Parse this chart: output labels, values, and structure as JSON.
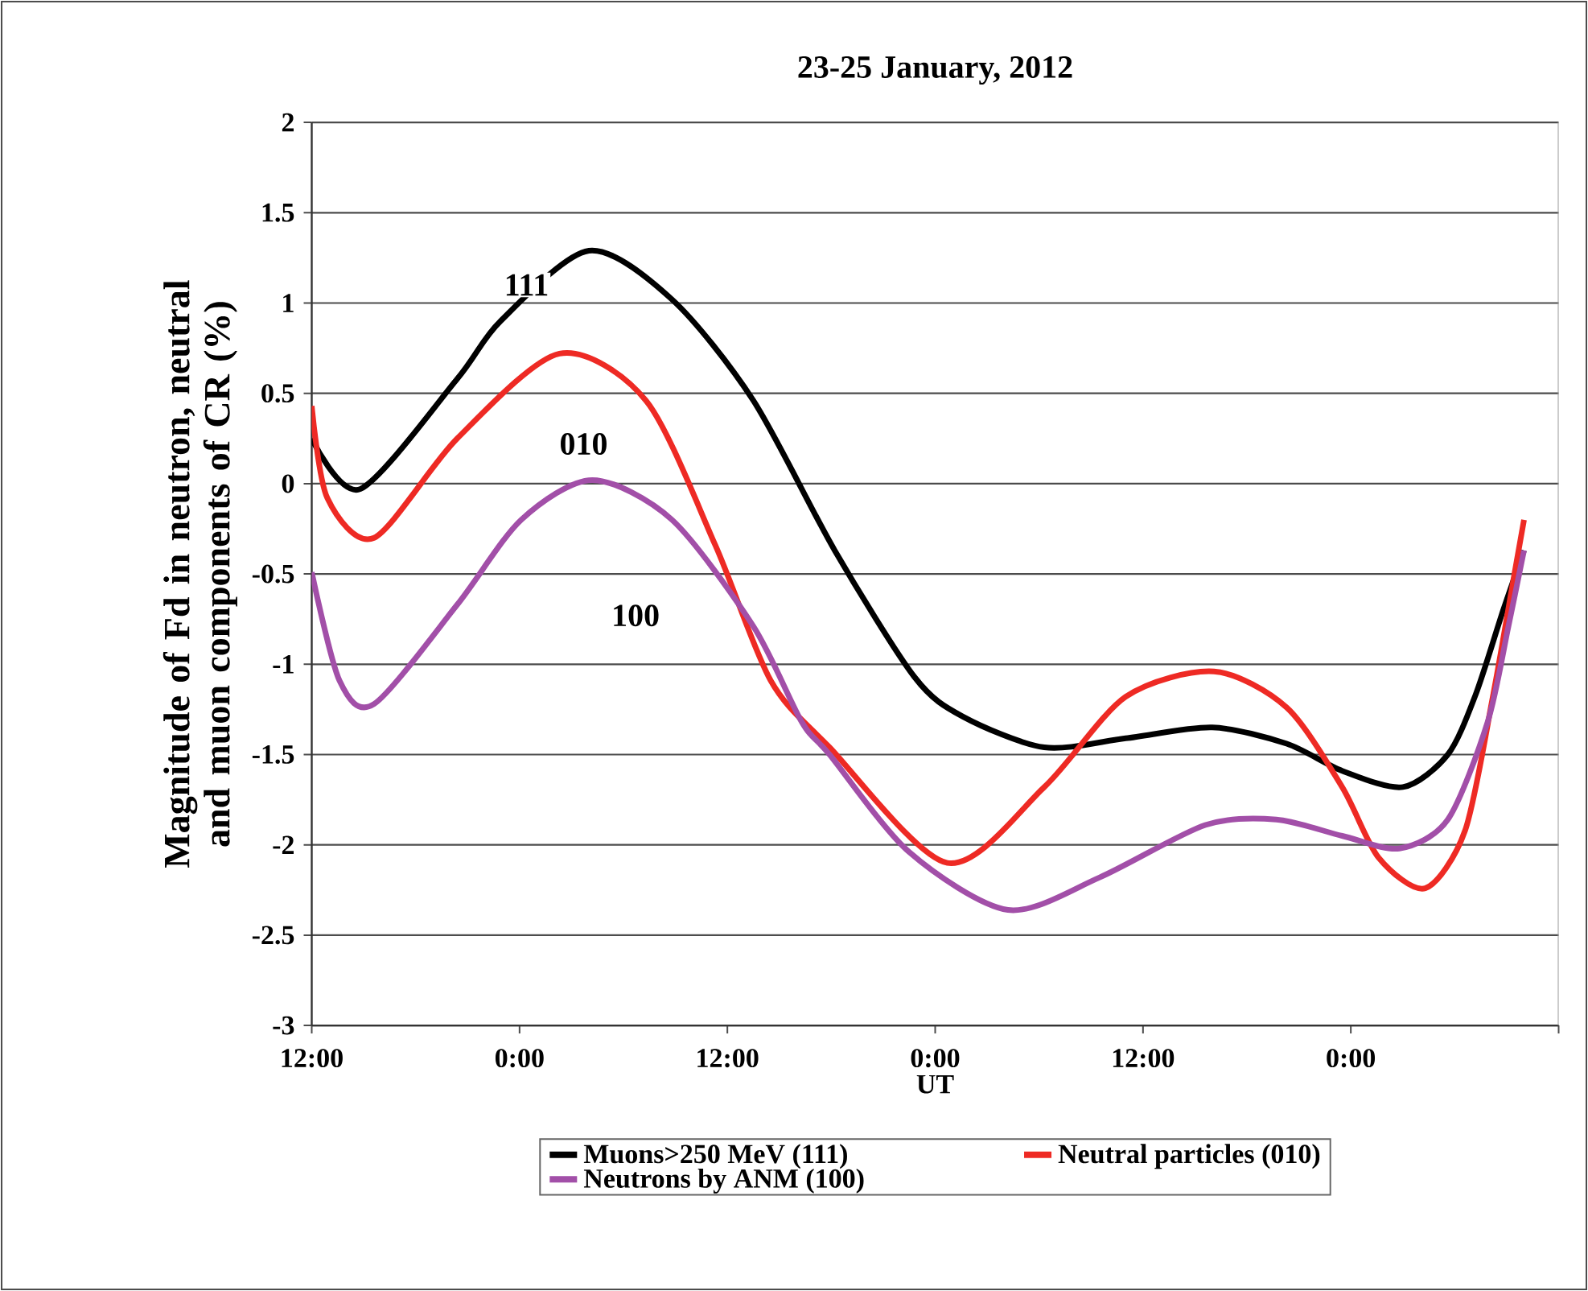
{
  "chart_data": {
    "type": "line",
    "title": "23-25 January, 2012",
    "xlabel": "UT",
    "ylabel": "Magnitude of Fd in neutron, neutral and muon components of CR (%)",
    "xlim": [
      "2012-01-22T12:00",
      "2012-01-25T12:00"
    ],
    "ylim": [
      -3,
      2
    ],
    "xticks": [
      {
        "value": "2012-01-22T12:00",
        "label": "12:00"
      },
      {
        "value": "2012-01-23T00:00",
        "label": "0:00"
      },
      {
        "value": "2012-01-23T12:00",
        "label": "12:00"
      },
      {
        "value": "2012-01-24T00:00",
        "label": "0:00"
      },
      {
        "value": "2012-01-24T12:00",
        "label": "12:00"
      },
      {
        "value": "2012-01-25T00:00",
        "label": "0:00"
      },
      {
        "value": "2012-01-25T12:00",
        "label": null
      }
    ],
    "yticks": [
      2,
      1.5,
      1,
      0.5,
      0,
      -0.5,
      -1,
      -1.5,
      -2,
      -2.5,
      -3
    ],
    "grid": "y",
    "legend": "bottom",
    "marker": "none",
    "line_style": "solid",
    "series": [
      {
        "name": "Muons>250 MeV (111)",
        "color": "#000000",
        "x": [
          "2012-01-22T12:00",
          "2012-01-22T14:48",
          "2012-01-22T20:24",
          "2012-01-22T22:54",
          "2012-01-23T04:00",
          "2012-01-23T08:48",
          "2012-01-23T13:30",
          "2012-01-23T18:12",
          "2012-01-23T22:48",
          "2012-01-24T01:36",
          "2012-01-24T06:18",
          "2012-01-24T11:00",
          "2012-01-24T16:00",
          "2012-01-24T20:18",
          "2012-01-24T23:30",
          "2012-01-25T03:00",
          "2012-01-25T05:36",
          "2012-01-25T07:12",
          "2012-01-25T08:48",
          "2012-01-25T10:00"
        ],
        "values": [
          0.25,
          -0.03,
          0.58,
          0.9,
          1.29,
          1.02,
          0.46,
          -0.37,
          -1.07,
          -1.29,
          -1.46,
          -1.41,
          -1.35,
          -1.44,
          -1.59,
          -1.68,
          -1.5,
          -1.17,
          -0.7,
          -0.37
        ]
      },
      {
        "name": "Neutral particles (010)",
        "color": "#ee2a24",
        "x": [
          "2012-01-22T12:00",
          "2012-01-22T12:54",
          "2012-01-22T15:36",
          "2012-01-22T20:24",
          "2012-01-23T02:18",
          "2012-01-23T07:18",
          "2012-01-23T11:18",
          "2012-01-23T14:30",
          "2012-01-23T17:54",
          "2012-01-24T00:42",
          "2012-01-24T06:18",
          "2012-01-24T11:00",
          "2012-01-24T16:06",
          "2012-01-24T20:18",
          "2012-01-24T23:30",
          "2012-01-25T01:36",
          "2012-01-25T04:18",
          "2012-01-25T06:36",
          "2012-01-25T08:12",
          "2012-01-25T09:18",
          "2012-01-25T10:00"
        ],
        "values": [
          0.43,
          -0.08,
          -0.3,
          0.25,
          0.72,
          0.46,
          -0.34,
          -1.09,
          -1.46,
          -2.1,
          -1.68,
          -1.18,
          -1.04,
          -1.24,
          -1.68,
          -2.07,
          -2.24,
          -1.92,
          -1.18,
          -0.58,
          -0.2
        ]
      },
      {
        "name": "Neutrons by ANM (100)",
        "color": "#a24fa8",
        "x": [
          "2012-01-22T12:00",
          "2012-01-22T13:36",
          "2012-01-22T15:36",
          "2012-01-22T20:24",
          "2012-01-23T00:06",
          "2012-01-23T04:12",
          "2012-01-23T08:48",
          "2012-01-23T13:30",
          "2012-01-23T16:18",
          "2012-01-23T17:54",
          "2012-01-23T22:30",
          "2012-01-24T04:12",
          "2012-01-24T09:30",
          "2012-01-24T15:36",
          "2012-01-24T19:42",
          "2012-01-24T23:30",
          "2012-01-25T02:48",
          "2012-01-25T05:36",
          "2012-01-25T07:54",
          "2012-01-25T09:06",
          "2012-01-25T10:00"
        ],
        "values": [
          -0.49,
          -1.09,
          -1.22,
          -0.67,
          -0.2,
          0.02,
          -0.2,
          -0.79,
          -1.32,
          -1.5,
          -2.04,
          -2.36,
          -2.18,
          -1.89,
          -1.86,
          -1.95,
          -2.02,
          -1.86,
          -1.32,
          -0.79,
          -0.37
        ]
      }
    ],
    "annotations": [
      {
        "text": "111",
        "x": "2012-01-23T00:24",
        "y": 1.1
      },
      {
        "text": "010",
        "x": "2012-01-23T03:42",
        "y": 0.22
      },
      {
        "text": "100",
        "x": "2012-01-23T06:42",
        "y": -0.73
      }
    ]
  }
}
